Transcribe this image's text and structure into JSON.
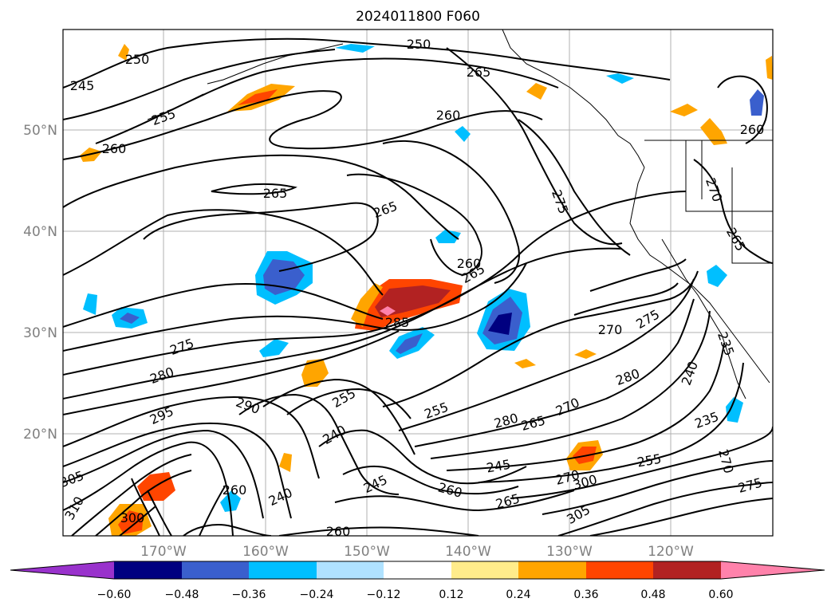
{
  "title": "2024011800 F060",
  "map": {
    "latitude_labels": [
      "50°N",
      "40°N",
      "30°N",
      "20°N"
    ],
    "longitude_labels": [
      "170°W",
      "160°W",
      "150°W",
      "140°W",
      "130°W",
      "120°W"
    ],
    "contour_labels": [
      "250",
      "250",
      "245",
      "265",
      "255",
      "260",
      "260",
      "265",
      "265",
      "275",
      "260",
      "270",
      "265",
      "260",
      "265",
      "285",
      "275",
      "280",
      "295",
      "290",
      "255",
      "255",
      "280",
      "270",
      "270",
      "275",
      "235",
      "240",
      "240",
      "280",
      "265",
      "270",
      "245",
      "260",
      "245",
      "265",
      "305",
      "300",
      "310",
      "300",
      "305",
      "260",
      "240",
      "235",
      "255",
      "270",
      "275",
      "260"
    ]
  },
  "colorbar": {
    "ticks": [
      "−0.60",
      "−0.48",
      "−0.36",
      "−0.24",
      "−0.12",
      "0.12",
      "0.24",
      "0.36",
      "0.48",
      "0.60"
    ],
    "colors": {
      "under": "#9932cc",
      "n060": "#000080",
      "n048": "#3a5fcd",
      "n036": "#00bfff",
      "n024": "#b0e2ff",
      "n012": "#ffffff",
      "p012": "#ffec8b",
      "p024": "#ffa500",
      "p036": "#ff4500",
      "p048": "#b22222",
      "over": "#ff82ab"
    }
  }
}
